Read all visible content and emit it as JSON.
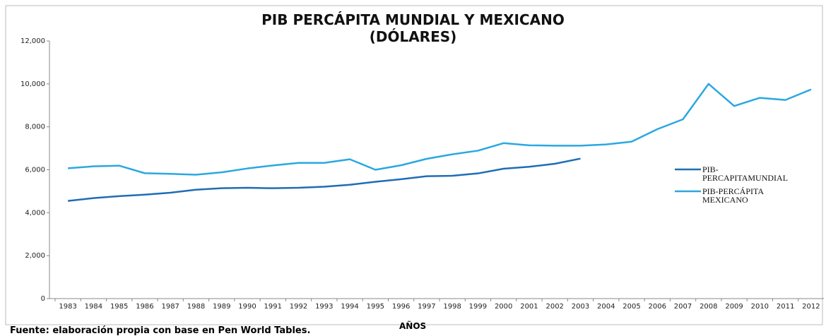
{
  "chart_data": {
    "type": "line",
    "title": "PIB PERCÁPITA MUNDIAL Y MEXICANO",
    "subtitle": "(DÓLARES)",
    "x_label": "AÑOS",
    "source": "Fuente: elaboración propia con base en Pen World Tables.",
    "categories": [
      "1983",
      "1984",
      "1985",
      "1986",
      "1987",
      "1988",
      "1989",
      "1990",
      "1991",
      "1992",
      "1993",
      "1994",
      "1995",
      "1996",
      "1997",
      "1998",
      "1999",
      "2000",
      "2001",
      "2002",
      "2003",
      "2004",
      "2005",
      "2006",
      "2007",
      "2008",
      "2009",
      "2010",
      "2011",
      "2012"
    ],
    "series": [
      {
        "name": "PIB-PERCAPITAMUNDIAL",
        "color": "#1f6db5",
        "values": [
          4550,
          4680,
          4770,
          4840,
          4930,
          5070,
          5140,
          5160,
          5140,
          5160,
          5210,
          5300,
          5440,
          5560,
          5700,
          5720,
          5830,
          6050,
          6140,
          6280,
          6520,
          null,
          null,
          null,
          null,
          null,
          null,
          null,
          null,
          null
        ]
      },
      {
        "name": "PIB-PERCÁPITA MEXICANO",
        "color": "#2aa8e0",
        "values": [
          6070,
          6160,
          6190,
          5840,
          5810,
          5770,
          5880,
          6060,
          6200,
          6320,
          6320,
          6490,
          6000,
          6210,
          6510,
          6720,
          6890,
          7240,
          7140,
          7120,
          7120,
          7180,
          7310,
          7890,
          8350,
          10000,
          8970,
          9350,
          9250,
          9740
        ]
      }
    ],
    "ylim": [
      0,
      12000
    ],
    "yticks": [
      0,
      {
        "value": 2000,
        "label": "2,000"
      },
      {
        "value": 4000,
        "label": "4,000"
      },
      {
        "value": 6000,
        "label": "6,000"
      },
      {
        "value": 8000,
        "label": "8,000"
      },
      {
        "value": 10000,
        "label": "10,000"
      },
      {
        "value": 12000,
        "label": "12,000"
      }
    ],
    "grid": false,
    "legend": "right"
  }
}
